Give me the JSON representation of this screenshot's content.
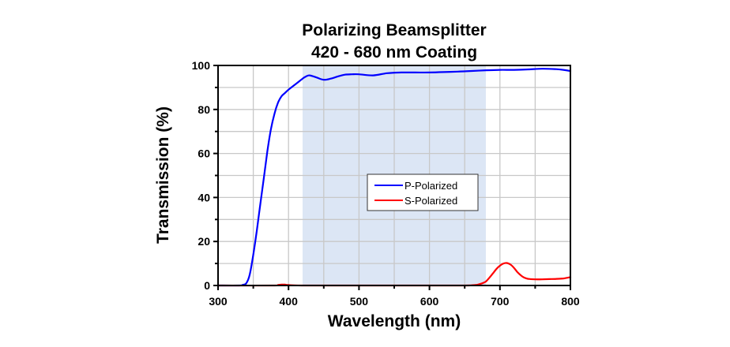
{
  "chart_data": {
    "type": "line",
    "title": [
      "Polarizing Beamsplitter",
      "420 - 680 nm Coating"
    ],
    "xlabel": "Wavelength (nm)",
    "ylabel": "Transmission (%)",
    "xlim": [
      300,
      800
    ],
    "ylim": [
      0,
      100
    ],
    "xticks": [
      300,
      400,
      500,
      600,
      700,
      800
    ],
    "yticks": [
      0,
      20,
      40,
      60,
      80,
      100
    ],
    "xtick_labels": [
      "300",
      "400",
      "500",
      "600",
      "700",
      "800"
    ],
    "ytick_labels": [
      "0",
      "20",
      "40",
      "60",
      "80",
      "100"
    ],
    "grid": true,
    "shaded_band": {
      "x_start": 420,
      "x_end": 680,
      "color": "#dce6f5"
    },
    "legend_position": "center",
    "series": [
      {
        "name": "P-Polarized",
        "color": "#0000ff",
        "x": [
          300,
          330,
          335,
          340,
          345,
          350,
          355,
          360,
          365,
          370,
          375,
          380,
          385,
          390,
          395,
          400,
          410,
          420,
          425,
          430,
          440,
          450,
          460,
          470,
          480,
          490,
          500,
          520,
          540,
          560,
          580,
          600,
          620,
          640,
          660,
          680,
          700,
          720,
          740,
          760,
          780,
          790,
          800
        ],
        "y": [
          0,
          0,
          0.3,
          1,
          5,
          14,
          25,
          37,
          49,
          61,
          71,
          78,
          83,
          86,
          87.5,
          89,
          91.5,
          94,
          95,
          95.5,
          94.5,
          93.5,
          94,
          95,
          95.8,
          96,
          96,
          95.5,
          96.5,
          96.8,
          96.8,
          96.8,
          97,
          97.2,
          97.5,
          97.8,
          98,
          98,
          98.2,
          98.5,
          98.3,
          98,
          97.5
        ]
      },
      {
        "name": "S-Polarized",
        "color": "#ff0000",
        "x": [
          300,
          380,
          385,
          390,
          395,
          400,
          420,
          500,
          600,
          650,
          665,
          670,
          675,
          680,
          685,
          690,
          695,
          700,
          705,
          710,
          715,
          720,
          725,
          730,
          735,
          740,
          750,
          760,
          770,
          780,
          790,
          800
        ],
        "y": [
          0,
          0,
          0.2,
          0.4,
          0.4,
          0.2,
          0,
          0,
          0,
          0,
          0.2,
          0.5,
          1,
          1.8,
          3.5,
          5.5,
          7.5,
          9,
          10,
          10.2,
          9.5,
          8,
          6,
          4.5,
          3.5,
          3,
          2.8,
          2.8,
          2.9,
          3,
          3.2,
          3.8
        ]
      }
    ]
  }
}
